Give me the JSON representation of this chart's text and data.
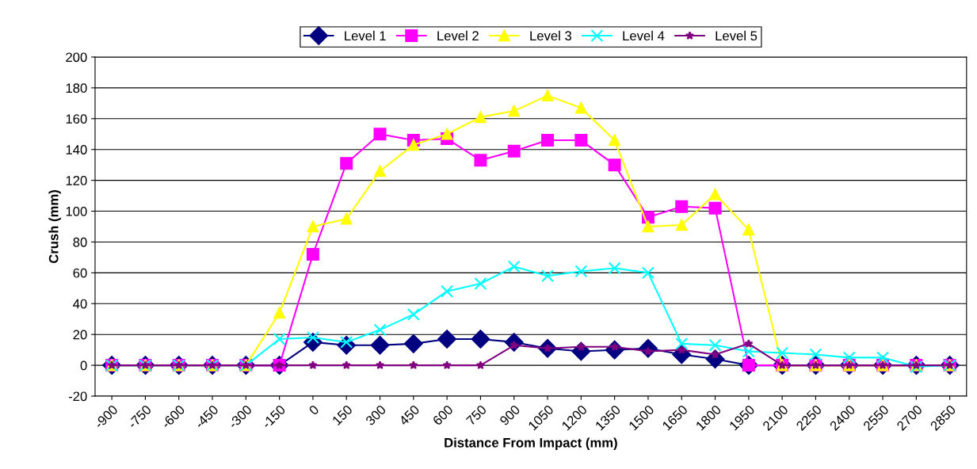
{
  "chart_data": {
    "type": "line",
    "xlabel": "Distance From Impact (mm)",
    "ylabel": "Crush (mm)",
    "categories": [
      "-900",
      "-750",
      "-600",
      "-450",
      "-300",
      "-150",
      "0",
      "150",
      "300",
      "450",
      "600",
      "750",
      "900",
      "1050",
      "1200",
      "1350",
      "1500",
      "1650",
      "1800",
      "1950",
      "2100",
      "2250",
      "2400",
      "2550",
      "2700",
      "2850"
    ],
    "series": [
      {
        "name": "Level 1",
        "color": "#000080",
        "marker": "diamond",
        "values": [
          0,
          0,
          0,
          0,
          0,
          0,
          15,
          13,
          13,
          14,
          17,
          17,
          15,
          11,
          9,
          10,
          11,
          7,
          4,
          0,
          0,
          0,
          0,
          0,
          0,
          0
        ]
      },
      {
        "name": "Level 2",
        "color": "#ff00ff",
        "marker": "square",
        "values": [
          0,
          0,
          0,
          0,
          0,
          0,
          72,
          131,
          150,
          146,
          147,
          133,
          139,
          146,
          146,
          130,
          96,
          103,
          102,
          0,
          0,
          0,
          0,
          0,
          0,
          0
        ]
      },
      {
        "name": "Level 3",
        "color": "#ffff00",
        "marker": "triangle",
        "values": [
          0,
          0,
          0,
          0,
          0,
          34,
          90,
          95,
          126,
          143,
          150,
          161,
          165,
          175,
          167,
          146,
          90,
          91,
          111,
          88,
          0,
          0,
          0,
          0,
          0,
          0
        ]
      },
      {
        "name": "Level 4",
        "color": "#00ffff",
        "marker": "cross",
        "values": [
          0,
          0,
          0,
          0,
          0,
          17,
          18,
          15,
          23,
          33,
          48,
          53,
          64,
          58,
          61,
          63,
          60,
          14,
          13,
          9,
          8,
          7,
          5,
          5,
          -1,
          0
        ]
      },
      {
        "name": "Level 5",
        "color": "#800080",
        "marker": "star",
        "values": [
          0,
          0,
          0,
          0,
          0,
          0,
          0,
          0,
          0,
          0,
          0,
          0,
          13,
          11,
          12,
          12,
          9,
          10,
          7,
          14,
          0,
          0,
          0,
          0,
          0,
          0
        ]
      }
    ],
    "ylim": [
      -20,
      200
    ],
    "yticks": [
      -20,
      0,
      20,
      40,
      60,
      80,
      100,
      120,
      140,
      160,
      180,
      200
    ],
    "grid": "y",
    "legend": "top",
    "line_style": "solid"
  }
}
